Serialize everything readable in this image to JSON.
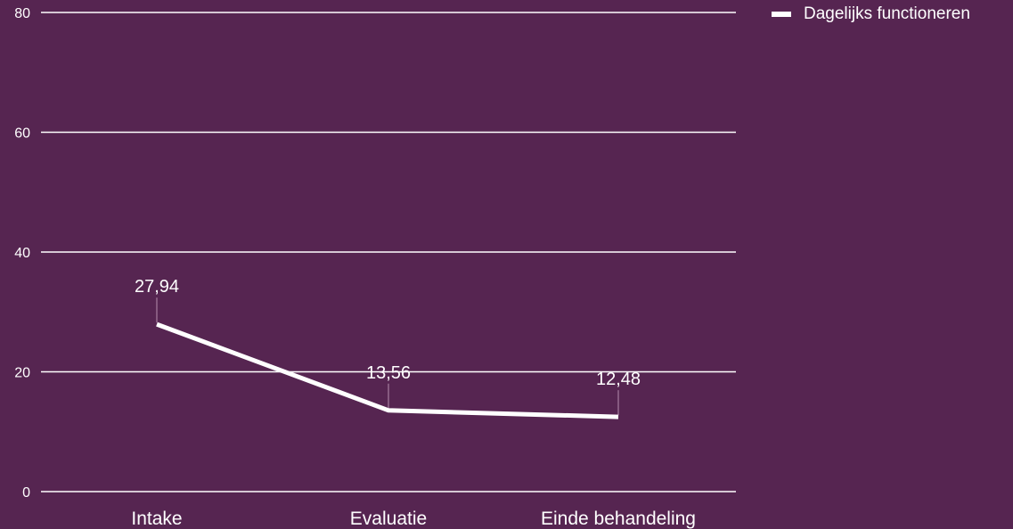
{
  "chart_data": {
    "type": "line",
    "categories": [
      "Intake",
      "Evaluatie",
      "Einde behandeling"
    ],
    "series": [
      {
        "name": "Dagelijks functioneren",
        "values": [
          27.94,
          13.56,
          12.48
        ],
        "labels": [
          "27,94",
          "13,56",
          "12,48"
        ],
        "color": "#ffffff"
      }
    ],
    "ylim": [
      0,
      80
    ],
    "yticks": [
      0,
      20,
      40,
      60,
      80
    ],
    "ytick_labels": [
      "0",
      "20",
      "40",
      "60",
      "80"
    ],
    "grid": true,
    "legend_position": "top-right",
    "xlabel": "",
    "ylabel": ""
  },
  "colors": {
    "background": "#562551",
    "line": "#ffffff",
    "grid": "#ffffff",
    "text": "#ffffff"
  }
}
